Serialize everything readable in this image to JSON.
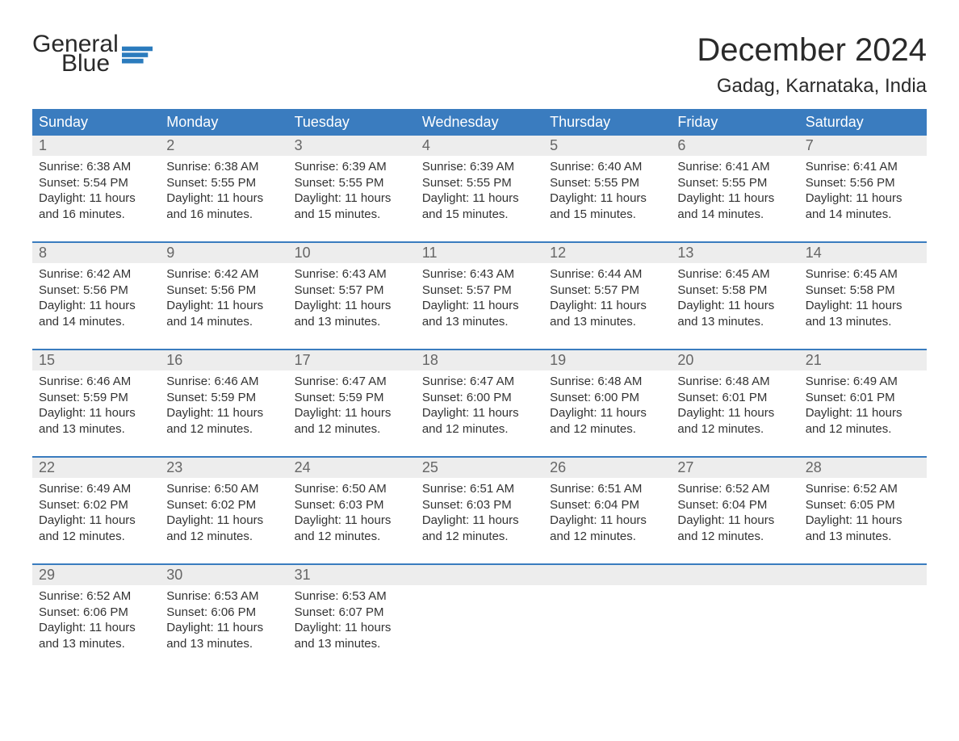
{
  "logo": {
    "line1": "General",
    "line2": "Blue"
  },
  "header": {
    "month_title": "December 2024",
    "location": "Gadag, Karnataka, India"
  },
  "day_names": [
    "Sunday",
    "Monday",
    "Tuesday",
    "Wednesday",
    "Thursday",
    "Friday",
    "Saturday"
  ],
  "colors": {
    "header_bg": "#3a7cbf",
    "header_text": "#ffffff",
    "daynum_bg": "#ededed",
    "daynum_text": "#666666",
    "body_text": "#333333",
    "week_border": "#3a7cbf",
    "logo_blue": "#2b7bbd"
  },
  "typography": {
    "month_title_fontsize": 40,
    "location_fontsize": 24,
    "dayname_fontsize": 18,
    "daynum_fontsize": 18,
    "content_fontsize": 15
  },
  "layout": {
    "columns": 7,
    "rows": 5
  },
  "weeks": [
    [
      {
        "num": "1",
        "sunrise": "Sunrise: 6:38 AM",
        "sunset": "Sunset: 5:54 PM",
        "daylight": "Daylight: 11 hours and 16 minutes."
      },
      {
        "num": "2",
        "sunrise": "Sunrise: 6:38 AM",
        "sunset": "Sunset: 5:55 PM",
        "daylight": "Daylight: 11 hours and 16 minutes."
      },
      {
        "num": "3",
        "sunrise": "Sunrise: 6:39 AM",
        "sunset": "Sunset: 5:55 PM",
        "daylight": "Daylight: 11 hours and 15 minutes."
      },
      {
        "num": "4",
        "sunrise": "Sunrise: 6:39 AM",
        "sunset": "Sunset: 5:55 PM",
        "daylight": "Daylight: 11 hours and 15 minutes."
      },
      {
        "num": "5",
        "sunrise": "Sunrise: 6:40 AM",
        "sunset": "Sunset: 5:55 PM",
        "daylight": "Daylight: 11 hours and 15 minutes."
      },
      {
        "num": "6",
        "sunrise": "Sunrise: 6:41 AM",
        "sunset": "Sunset: 5:55 PM",
        "daylight": "Daylight: 11 hours and 14 minutes."
      },
      {
        "num": "7",
        "sunrise": "Sunrise: 6:41 AM",
        "sunset": "Sunset: 5:56 PM",
        "daylight": "Daylight: 11 hours and 14 minutes."
      }
    ],
    [
      {
        "num": "8",
        "sunrise": "Sunrise: 6:42 AM",
        "sunset": "Sunset: 5:56 PM",
        "daylight": "Daylight: 11 hours and 14 minutes."
      },
      {
        "num": "9",
        "sunrise": "Sunrise: 6:42 AM",
        "sunset": "Sunset: 5:56 PM",
        "daylight": "Daylight: 11 hours and 14 minutes."
      },
      {
        "num": "10",
        "sunrise": "Sunrise: 6:43 AM",
        "sunset": "Sunset: 5:57 PM",
        "daylight": "Daylight: 11 hours and 13 minutes."
      },
      {
        "num": "11",
        "sunrise": "Sunrise: 6:43 AM",
        "sunset": "Sunset: 5:57 PM",
        "daylight": "Daylight: 11 hours and 13 minutes."
      },
      {
        "num": "12",
        "sunrise": "Sunrise: 6:44 AM",
        "sunset": "Sunset: 5:57 PM",
        "daylight": "Daylight: 11 hours and 13 minutes."
      },
      {
        "num": "13",
        "sunrise": "Sunrise: 6:45 AM",
        "sunset": "Sunset: 5:58 PM",
        "daylight": "Daylight: 11 hours and 13 minutes."
      },
      {
        "num": "14",
        "sunrise": "Sunrise: 6:45 AM",
        "sunset": "Sunset: 5:58 PM",
        "daylight": "Daylight: 11 hours and 13 minutes."
      }
    ],
    [
      {
        "num": "15",
        "sunrise": "Sunrise: 6:46 AM",
        "sunset": "Sunset: 5:59 PM",
        "daylight": "Daylight: 11 hours and 13 minutes."
      },
      {
        "num": "16",
        "sunrise": "Sunrise: 6:46 AM",
        "sunset": "Sunset: 5:59 PM",
        "daylight": "Daylight: 11 hours and 12 minutes."
      },
      {
        "num": "17",
        "sunrise": "Sunrise: 6:47 AM",
        "sunset": "Sunset: 5:59 PM",
        "daylight": "Daylight: 11 hours and 12 minutes."
      },
      {
        "num": "18",
        "sunrise": "Sunrise: 6:47 AM",
        "sunset": "Sunset: 6:00 PM",
        "daylight": "Daylight: 11 hours and 12 minutes."
      },
      {
        "num": "19",
        "sunrise": "Sunrise: 6:48 AM",
        "sunset": "Sunset: 6:00 PM",
        "daylight": "Daylight: 11 hours and 12 minutes."
      },
      {
        "num": "20",
        "sunrise": "Sunrise: 6:48 AM",
        "sunset": "Sunset: 6:01 PM",
        "daylight": "Daylight: 11 hours and 12 minutes."
      },
      {
        "num": "21",
        "sunrise": "Sunrise: 6:49 AM",
        "sunset": "Sunset: 6:01 PM",
        "daylight": "Daylight: 11 hours and 12 minutes."
      }
    ],
    [
      {
        "num": "22",
        "sunrise": "Sunrise: 6:49 AM",
        "sunset": "Sunset: 6:02 PM",
        "daylight": "Daylight: 11 hours and 12 minutes."
      },
      {
        "num": "23",
        "sunrise": "Sunrise: 6:50 AM",
        "sunset": "Sunset: 6:02 PM",
        "daylight": "Daylight: 11 hours and 12 minutes."
      },
      {
        "num": "24",
        "sunrise": "Sunrise: 6:50 AM",
        "sunset": "Sunset: 6:03 PM",
        "daylight": "Daylight: 11 hours and 12 minutes."
      },
      {
        "num": "25",
        "sunrise": "Sunrise: 6:51 AM",
        "sunset": "Sunset: 6:03 PM",
        "daylight": "Daylight: 11 hours and 12 minutes."
      },
      {
        "num": "26",
        "sunrise": "Sunrise: 6:51 AM",
        "sunset": "Sunset: 6:04 PM",
        "daylight": "Daylight: 11 hours and 12 minutes."
      },
      {
        "num": "27",
        "sunrise": "Sunrise: 6:52 AM",
        "sunset": "Sunset: 6:04 PM",
        "daylight": "Daylight: 11 hours and 12 minutes."
      },
      {
        "num": "28",
        "sunrise": "Sunrise: 6:52 AM",
        "sunset": "Sunset: 6:05 PM",
        "daylight": "Daylight: 11 hours and 13 minutes."
      }
    ],
    [
      {
        "num": "29",
        "sunrise": "Sunrise: 6:52 AM",
        "sunset": "Sunset: 6:06 PM",
        "daylight": "Daylight: 11 hours and 13 minutes."
      },
      {
        "num": "30",
        "sunrise": "Sunrise: 6:53 AM",
        "sunset": "Sunset: 6:06 PM",
        "daylight": "Daylight: 11 hours and 13 minutes."
      },
      {
        "num": "31",
        "sunrise": "Sunrise: 6:53 AM",
        "sunset": "Sunset: 6:07 PM",
        "daylight": "Daylight: 11 hours and 13 minutes."
      },
      null,
      null,
      null,
      null
    ]
  ]
}
